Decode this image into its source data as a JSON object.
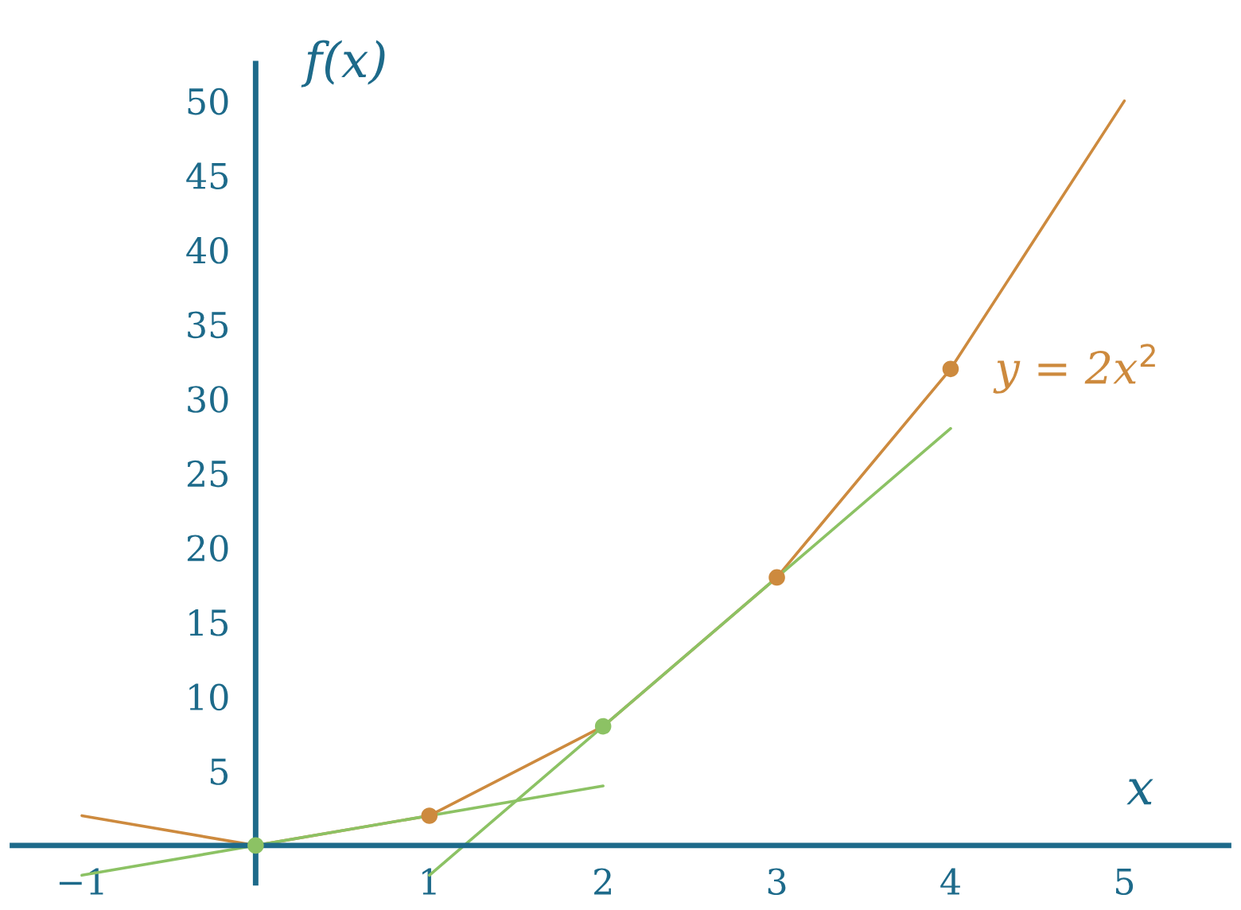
{
  "chart_data": {
    "type": "line",
    "xlabel": "x",
    "ylabel": "f(x)",
    "xlim": [
      -1.4,
      5.6
    ],
    "ylim": [
      -2.5,
      52.5
    ],
    "xticks": [
      {
        "value": -1,
        "label": "−1"
      },
      1,
      2,
      3,
      4,
      5
    ],
    "yticks": [
      5,
      10,
      15,
      20,
      25,
      30,
      35,
      40,
      45,
      50
    ],
    "line_style": "solid",
    "grid": false,
    "series": [
      {
        "color": "#cd8a3e",
        "x": [
          -1,
          0,
          1,
          2,
          3,
          4,
          5
        ],
        "values": [
          2,
          0,
          2,
          8,
          18,
          32,
          50
        ]
      },
      {
        "type": "scatter",
        "marker": "circle",
        "name": "y = 2x$^{2}$",
        "color": "#cd8a3e",
        "x": [
          1,
          3,
          4
        ],
        "values": [
          2,
          18,
          32
        ]
      },
      {
        "color": "#8cc264",
        "x": [
          -1,
          2
        ],
        "values": [
          -2,
          4
        ]
      },
      {
        "color": "#8cc264",
        "x": [
          1,
          4
        ],
        "values": [
          -2,
          28
        ]
      },
      {
        "type": "scatter",
        "marker": "circle",
        "color": "#8cc264",
        "x": [
          0,
          2
        ],
        "values": [
          0,
          8
        ]
      }
    ]
  }
}
